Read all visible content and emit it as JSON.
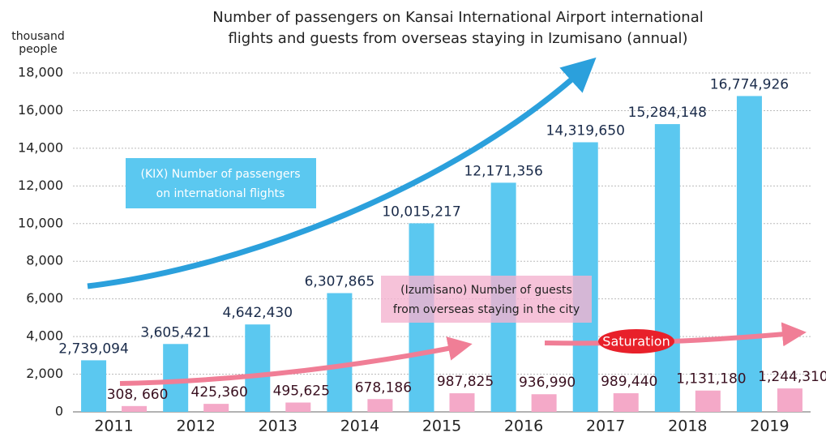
{
  "chart_data": {
    "type": "bar",
    "title": [
      "Number of passengers on Kansai International Airport international",
      "flights and guests from overseas staying in Izumisano (annual)"
    ],
    "y_axis_label": [
      "thousand",
      "people"
    ],
    "categories": [
      "2011",
      "2012",
      "2013",
      "2014",
      "2015",
      "2016",
      "2017",
      "2018",
      "2019"
    ],
    "series": [
      {
        "name": "(KIX) Number of passengers on international flights",
        "color": "#5bc8f0",
        "values": [
          2739.094,
          3605.421,
          4642.43,
          6307.865,
          10015.217,
          12171.356,
          14319.65,
          15284.148,
          16774.926
        ],
        "value_labels": [
          "2,739,094",
          "3,605,421",
          "4,642,430",
          "6,307,865",
          "10,015,217",
          "12,171,356",
          "14,319,650",
          "15,284,148",
          "16,774,926"
        ]
      },
      {
        "name": "(Izumisano) Number of guests from overseas staying in the city",
        "color": "#f4a9c8",
        "values": [
          308.66,
          425.36,
          495.625,
          678.186,
          987.825,
          936.99,
          989.44,
          1131.18,
          1244.31
        ],
        "value_labels": [
          "308, 660",
          "425,360",
          "495,625",
          "678,186",
          "987,825",
          "936,990",
          "989,440",
          "1,131,180",
          "1,244,310"
        ]
      }
    ],
    "annotations": [
      "(KIX) Number of passengers",
      "on international flights",
      "(Izumisano) Number of guests",
      "from overseas staying in the city",
      "Saturation"
    ],
    "ylim": [
      0,
      18000
    ],
    "yticks": [
      0,
      {
        "value": 2000,
        "label": "2,000"
      },
      {
        "value": 4000,
        "label": "4,000"
      },
      {
        "value": 6000,
        "label": "6,000"
      },
      {
        "value": 8000,
        "label": "8,000"
      },
      {
        "value": 10000,
        "label": "10,000"
      },
      {
        "value": 12000,
        "label": "12,000"
      },
      {
        "value": 14000,
        "label": "14,000"
      },
      {
        "value": 16000,
        "label": "16,000"
      },
      {
        "value": 18000,
        "label": "18,000"
      }
    ],
    "grid": true
  }
}
